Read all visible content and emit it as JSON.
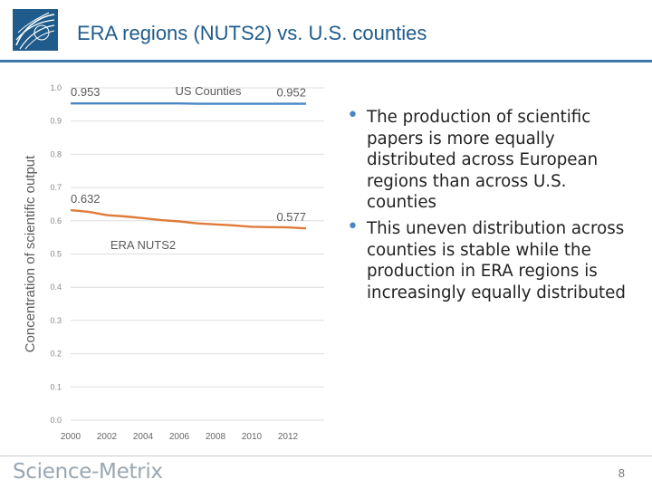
{
  "slide": {
    "title": "ERA regions (NUTS2) vs. U.S. counties",
    "bullets": [
      "The production of scientific papers is more equally distributed across European regions than across U.S. counties",
      "This uneven distribution across counties is stable while the production in ERA regions is increasingly equally distributed"
    ],
    "brand": "Science-Metrix",
    "page_number": "8"
  },
  "colors": {
    "accent": "#3a78ad",
    "us_line": "#4a86c5",
    "era_line": "#e07b39",
    "bullet": "#4a86c5"
  },
  "chart_data": {
    "type": "line",
    "ylabel": "Concentration of scientific output",
    "xlabel": "",
    "ylim": [
      0,
      1.0
    ],
    "yticks": [
      "0.0",
      "0.1",
      "0.2",
      "0.3",
      "0.4",
      "0.5",
      "0.6",
      "0.7",
      "0.8",
      "0.9",
      "1.0"
    ],
    "xticks": [
      "2000",
      "2002",
      "2004",
      "2006",
      "2008",
      "2010",
      "2012"
    ],
    "xlim": [
      2000,
      2014
    ],
    "grid": true,
    "series": [
      {
        "name": "US Counties",
        "color": "#4a86c5",
        "x": [
          2000,
          2001,
          2002,
          2003,
          2004,
          2005,
          2006,
          2007,
          2008,
          2009,
          2010,
          2011,
          2012,
          2013
        ],
        "y": [
          0.953,
          0.953,
          0.953,
          0.953,
          0.953,
          0.953,
          0.953,
          0.952,
          0.952,
          0.952,
          0.952,
          0.952,
          0.952,
          0.952
        ],
        "start_label": "0.953",
        "end_label": "0.952"
      },
      {
        "name": "ERA NUTS2",
        "color": "#e07b39",
        "x": [
          2000,
          2001,
          2002,
          2003,
          2004,
          2005,
          2006,
          2007,
          2008,
          2009,
          2010,
          2011,
          2012,
          2013
        ],
        "y": [
          0.632,
          0.627,
          0.617,
          0.613,
          0.608,
          0.602,
          0.598,
          0.592,
          0.589,
          0.586,
          0.582,
          0.581,
          0.58,
          0.577
        ],
        "start_label": "0.632",
        "end_label": "0.577"
      }
    ]
  }
}
